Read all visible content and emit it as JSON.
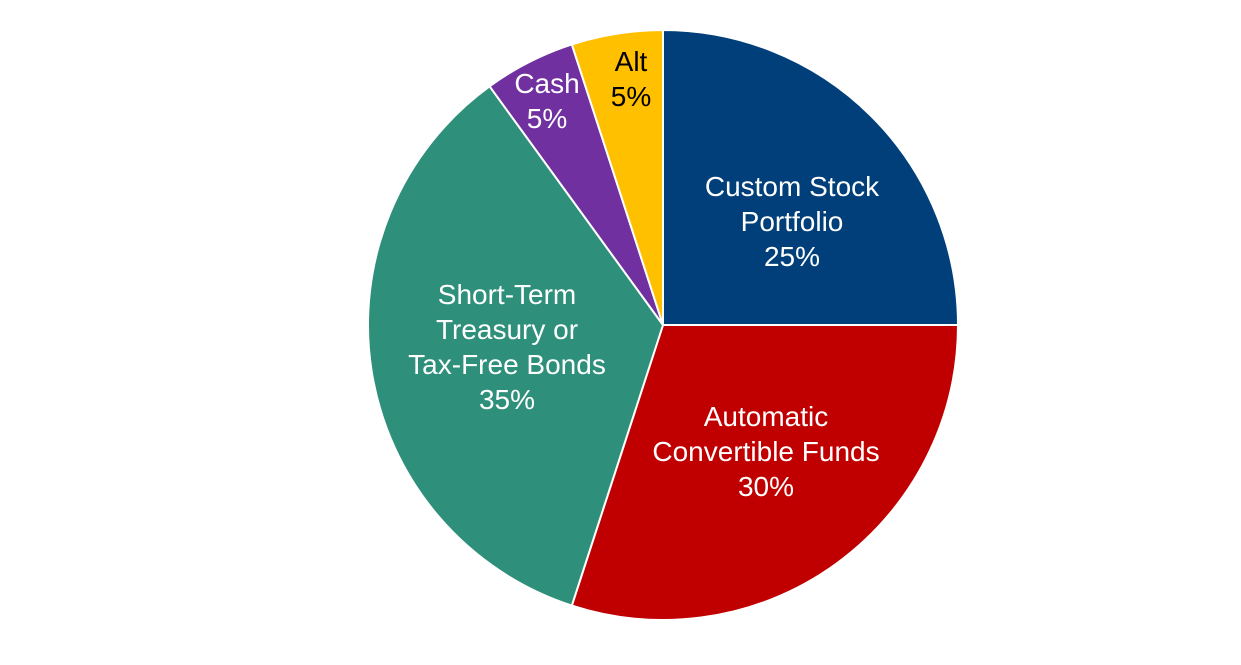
{
  "chart_data": {
    "type": "pie",
    "title": "",
    "start_angle_deg": 0,
    "direction": "clockwise",
    "slices": [
      {
        "label_lines": [
          "Custom Stock",
          "Portfolio"
        ],
        "value": 25,
        "value_label": "25%",
        "color": "#003F7A",
        "text_color": "#FFFFFF"
      },
      {
        "label_lines": [
          "Automatic",
          "Convertible Funds"
        ],
        "value": 30,
        "value_label": "30%",
        "color": "#C00000",
        "text_color": "#FFFFFF"
      },
      {
        "label_lines": [
          "Short-Term",
          "Treasury or",
          "Tax-Free Bonds"
        ],
        "value": 35,
        "value_label": "35%",
        "color": "#2E8F7A",
        "text_color": "#FFFFFF"
      },
      {
        "label_lines": [
          "Cash"
        ],
        "value": 5,
        "value_label": "5%",
        "color": "#7030A0",
        "text_color": "#FFFFFF"
      },
      {
        "label_lines": [
          "Alt"
        ],
        "value": 5,
        "value_label": "5%",
        "color": "#FFC000",
        "text_color": "#000000"
      }
    ]
  }
}
